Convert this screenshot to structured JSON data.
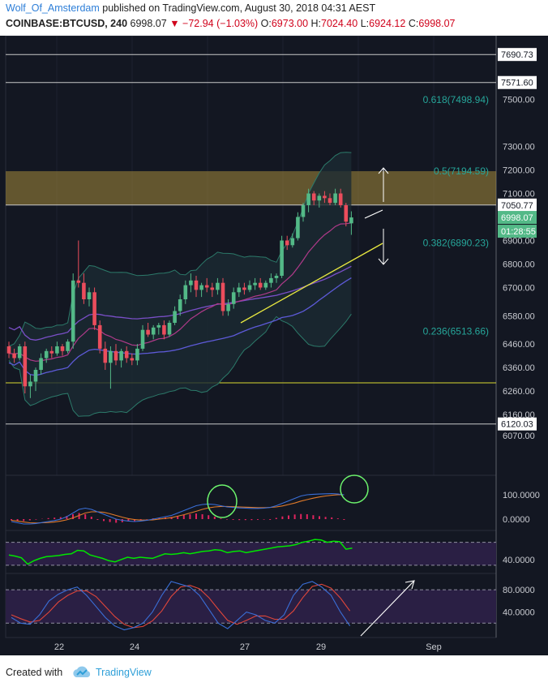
{
  "header": {
    "author": "Wolf_Of_Amsterdam",
    "published": "published on TradingView.com, August 30, 2018 04:31 AEST",
    "symbol": "COINBASE:BTCUSD, 240",
    "last": "6998.07",
    "change": "−72.94 (−1.03%)",
    "open_label": "O:",
    "open": "6973.00",
    "high_label": "H:",
    "high": "7024.40",
    "low_label": "L:",
    "low": "6924.12",
    "close_label": "C:",
    "close": "6998.07"
  },
  "footer": {
    "created_with": "Created with",
    "brand": "TradingView"
  },
  "colors": {
    "bg": "#131722",
    "up": "#53b987",
    "down": "#eb4d5c",
    "zone": "#a68a3a",
    "fib": "#26a69a",
    "macd": "#3a6fd8",
    "signal": "#e07a2a",
    "rsi": "#00e600",
    "stoch_k": "#3a6fd8",
    "stoch_d": "#e0463a",
    "annot": "#6cf36c"
  },
  "chart_data": [
    {
      "type": "candlestick",
      "title": "COINBASE:BTCUSD, 240",
      "x_labels": [
        "22",
        "24",
        "27",
        "29",
        "Sep"
      ],
      "y_ticks": [
        "7500.00",
        "7300.00",
        "7200.00",
        "7100.00",
        "6900.00",
        "6800.00",
        "6700.00",
        "6580.00",
        "6460.00",
        "6360.00",
        "6260.00",
        "6160.00",
        "6070.00"
      ],
      "price_tags": [
        "7690.73",
        "7571.60",
        "7050.77",
        "6998.07",
        "01:28:55",
        "6120.03"
      ],
      "fib_levels": [
        {
          "label": "0.618(7498.94)",
          "price": 7498.94
        },
        {
          "label": "0.5(7194.59)",
          "price": 7194.59
        },
        {
          "label": "0.382(6890.23)",
          "price": 6890.23
        },
        {
          "label": "0.236(6513.66)",
          "price": 6513.66
        }
      ],
      "horizontal_lines": [
        7690.73,
        7571.6,
        7050.77,
        6295,
        6120.03
      ],
      "zone": [
        7050.77,
        7194.59
      ],
      "candles": [
        [
          6450,
          6470,
          6400,
          6420
        ],
        [
          6420,
          6440,
          6380,
          6400
        ],
        [
          6400,
          6460,
          6390,
          6450
        ],
        [
          6450,
          6470,
          6250,
          6280
        ],
        [
          6280,
          6330,
          6230,
          6300
        ],
        [
          6300,
          6360,
          6260,
          6350
        ],
        [
          6350,
          6420,
          6330,
          6400
        ],
        [
          6400,
          6440,
          6380,
          6430
        ],
        [
          6430,
          6450,
          6400,
          6420
        ],
        [
          6420,
          6470,
          6410,
          6450
        ],
        [
          6450,
          6460,
          6410,
          6430
        ],
        [
          6430,
          6480,
          6420,
          6470
        ],
        [
          6470,
          6760,
          6440,
          6730
        ],
        [
          6730,
          6900,
          6700,
          6720
        ],
        [
          6720,
          6760,
          6630,
          6650
        ],
        [
          6650,
          6700,
          6620,
          6680
        ],
        [
          6680,
          6700,
          6520,
          6540
        ],
        [
          6540,
          6560,
          6420,
          6440
        ],
        [
          6440,
          6470,
          6350,
          6380
        ],
        [
          6380,
          6450,
          6270,
          6430
        ],
        [
          6430,
          6460,
          6370,
          6390
        ],
        [
          6390,
          6440,
          6360,
          6430
        ],
        [
          6430,
          6450,
          6380,
          6400
        ],
        [
          6400,
          6420,
          6370,
          6390
        ],
        [
          6390,
          6460,
          6370,
          6440
        ],
        [
          6440,
          6540,
          6430,
          6520
        ],
        [
          6520,
          6550,
          6490,
          6500
        ],
        [
          6500,
          6540,
          6480,
          6530
        ],
        [
          6530,
          6550,
          6500,
          6540
        ],
        [
          6540,
          6560,
          6480,
          6500
        ],
        [
          6500,
          6560,
          6490,
          6550
        ],
        [
          6550,
          6620,
          6540,
          6600
        ],
        [
          6600,
          6670,
          6580,
          6650
        ],
        [
          6650,
          6730,
          6630,
          6710
        ],
        [
          6710,
          6760,
          6680,
          6730
        ],
        [
          6730,
          6750,
          6660,
          6690
        ],
        [
          6690,
          6720,
          6660,
          6710
        ],
        [
          6710,
          6740,
          6680,
          6700
        ],
        [
          6700,
          6720,
          6660,
          6690
        ],
        [
          6690,
          6740,
          6670,
          6720
        ],
        [
          6720,
          6740,
          6580,
          6600
        ],
        [
          6600,
          6650,
          6580,
          6630
        ],
        [
          6630,
          6700,
          6610,
          6680
        ],
        [
          6680,
          6720,
          6660,
          6700
        ],
        [
          6700,
          6720,
          6670,
          6690
        ],
        [
          6690,
          6730,
          6680,
          6710
        ],
        [
          6710,
          6740,
          6690,
          6720
        ],
        [
          6720,
          6740,
          6690,
          6700
        ],
        [
          6700,
          6730,
          6690,
          6720
        ],
        [
          6720,
          6760,
          6700,
          6740
        ],
        [
          6740,
          6760,
          6720,
          6750
        ],
        [
          6750,
          6920,
          6740,
          6900
        ],
        [
          6900,
          6920,
          6860,
          6880
        ],
        [
          6880,
          6930,
          6870,
          6910
        ],
        [
          6910,
          7020,
          6900,
          7000
        ],
        [
          7000,
          7060,
          6980,
          7050
        ],
        [
          7050,
          7120,
          7020,
          7100
        ],
        [
          7100,
          7110,
          7050,
          7070
        ],
        [
          7070,
          7100,
          7040,
          7090
        ],
        [
          7090,
          7110,
          7060,
          7080
        ],
        [
          7080,
          7100,
          7050,
          7060
        ],
        [
          7060,
          7120,
          7050,
          7100
        ],
        [
          7100,
          7120,
          7040,
          7050
        ],
        [
          7050,
          7060,
          6960,
          6980
        ],
        [
          6973,
          7024,
          6924,
          6998
        ]
      ],
      "ylim": [
        6045,
        7710
      ]
    },
    {
      "type": "line",
      "name": "MACD",
      "y_ticks": [
        "100.0000",
        "0.0000"
      ],
      "series": [
        {
          "name": "macd",
          "values": [
            -10,
            -15,
            -20,
            -20,
            -18,
            -14,
            -10,
            -6,
            0,
            10,
            25,
            40,
            45,
            40,
            30,
            20,
            10,
            0,
            -5,
            -8,
            -10,
            -8,
            -5,
            0,
            5,
            10,
            15,
            25,
            35,
            45,
            55,
            60,
            62,
            60,
            55,
            50,
            48,
            46,
            45,
            44,
            44,
            45,
            48,
            55,
            65,
            75,
            85,
            95,
            100,
            102,
            103,
            104,
            105,
            103,
            100
          ]
        },
        {
          "name": "signal",
          "values": [
            -5,
            -8,
            -12,
            -15,
            -16,
            -15,
            -14,
            -12,
            -8,
            -3,
            5,
            15,
            25,
            30,
            30,
            28,
            22,
            15,
            8,
            2,
            -2,
            -4,
            -4,
            -3,
            0,
            3,
            6,
            12,
            18,
            25,
            32,
            40,
            46,
            50,
            52,
            52,
            51,
            50,
            49,
            48,
            47,
            47,
            48,
            50,
            54,
            60,
            66,
            74,
            80,
            86,
            91,
            95,
            98,
            100,
            100
          ]
        },
        {
          "name": "histogram",
          "values": [
            -5,
            -7,
            -8,
            -5,
            -2,
            1,
            4,
            6,
            8,
            13,
            20,
            25,
            20,
            10,
            0,
            -8,
            -12,
            -15,
            -13,
            -10,
            -8,
            -4,
            -1,
            3,
            5,
            7,
            9,
            13,
            17,
            20,
            23,
            20,
            16,
            10,
            3,
            -2,
            -3,
            -4,
            -4,
            -4,
            -3,
            -2,
            0,
            5,
            11,
            15,
            19,
            21,
            20,
            16,
            12,
            9,
            7,
            3,
            0
          ]
        }
      ],
      "ylim": [
        -20,
        160
      ]
    },
    {
      "type": "line",
      "name": "RSI",
      "y_ticks": [
        "40.0000"
      ],
      "series": [
        {
          "name": "rsi",
          "values": [
            48,
            46,
            43,
            32,
            38,
            42,
            45,
            46,
            47,
            49,
            50,
            56,
            55,
            48,
            45,
            42,
            38,
            36,
            40,
            44,
            42,
            44,
            43,
            42,
            46,
            50,
            49,
            50,
            52,
            50,
            52,
            54,
            55,
            57,
            56,
            52,
            54,
            55,
            52,
            54,
            56,
            58,
            60,
            62,
            63,
            64,
            66,
            70,
            72,
            75,
            74,
            70,
            72,
            71,
            58,
            60
          ]
        }
      ],
      "ylim": [
        20,
        85
      ]
    },
    {
      "type": "line",
      "name": "Stochastic",
      "y_ticks": [
        "80.0000",
        "40.0000"
      ],
      "series": [
        {
          "name": "%K",
          "values": [
            30,
            20,
            18,
            35,
            60,
            72,
            80,
            85,
            70,
            50,
            30,
            15,
            8,
            12,
            20,
            40,
            70,
            95,
            90,
            85,
            70,
            45,
            20,
            10,
            25,
            40,
            35,
            25,
            20,
            35,
            70,
            90,
            95,
            85,
            70,
            40,
            15
          ]
        },
        {
          "name": "%D",
          "values": [
            35,
            28,
            22,
            25,
            40,
            58,
            70,
            78,
            78,
            68,
            50,
            32,
            18,
            12,
            14,
            24,
            42,
            68,
            85,
            88,
            82,
            66,
            45,
            25,
            18,
            25,
            33,
            33,
            27,
            27,
            42,
            66,
            86,
            90,
            83,
            65,
            42
          ]
        }
      ],
      "ylim": [
        0,
        105
      ]
    }
  ]
}
